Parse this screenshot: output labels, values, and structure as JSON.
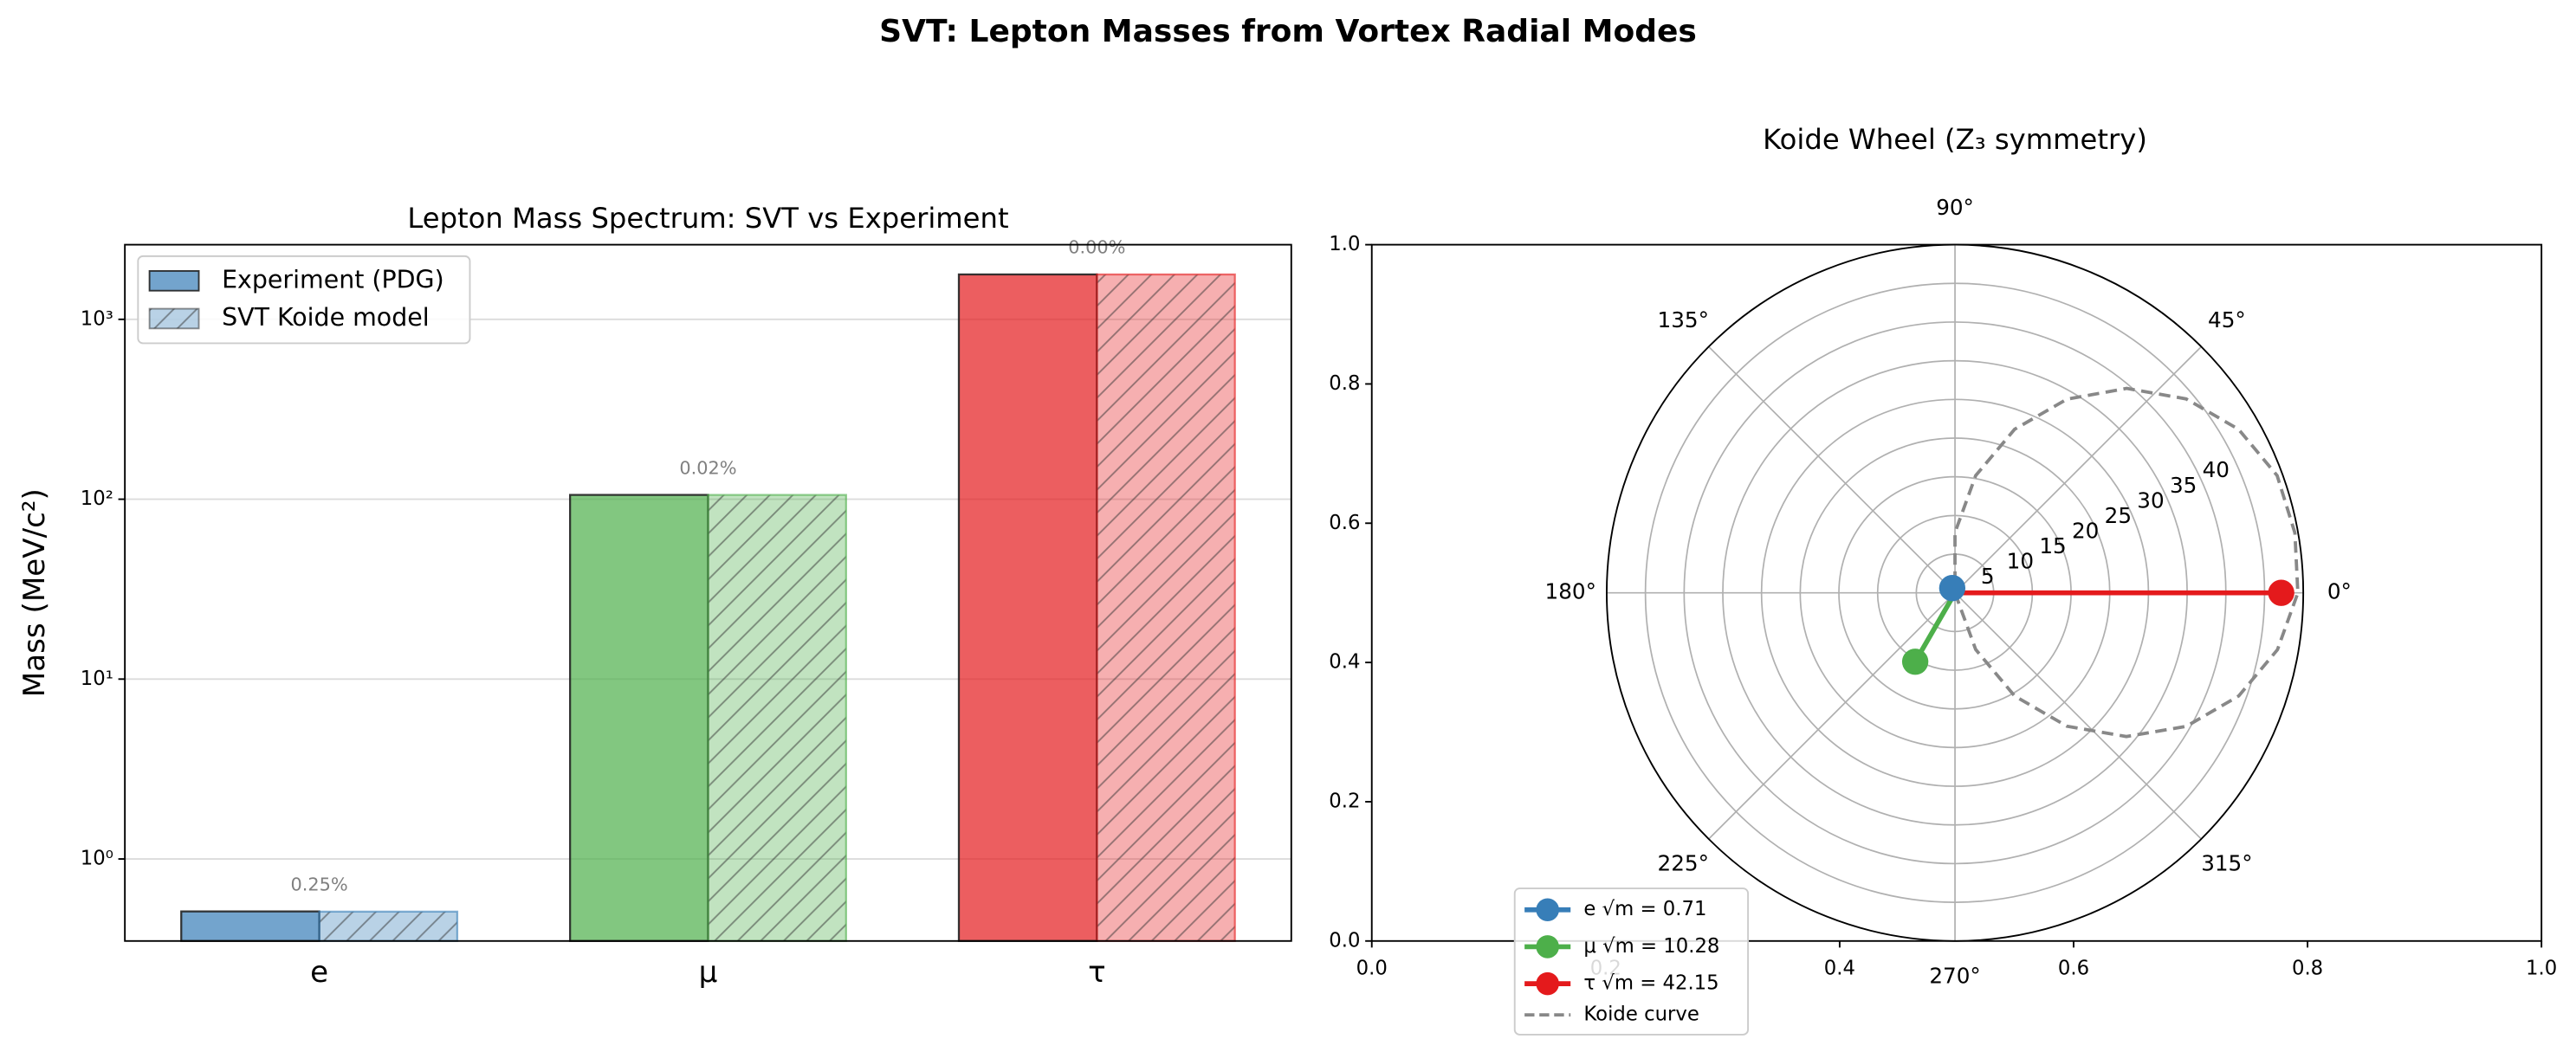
{
  "title": "SVT: Lepton Masses from Vortex Radial Modes",
  "chart_data": [
    {
      "type": "bar",
      "title": "Lepton Mass Spectrum: SVT vs Experiment",
      "ylabel": "Mass  (MeV/c²)",
      "categories": [
        "e",
        "μ",
        "τ"
      ],
      "colors": [
        "#377eb8",
        "#4daf4a",
        "#e41a1c"
      ],
      "series": [
        {
          "name": "Experiment (PDG)",
          "values": [
            0.511,
            105.66,
            1776.86
          ],
          "alpha": 0.7,
          "hatch": false
        },
        {
          "name": "SVT Koide model",
          "values": [
            0.5097,
            105.64,
            1776.9
          ],
          "alpha": 0.35,
          "hatch": true
        }
      ],
      "annotations": [
        "0.25%",
        "0.02%",
        "0.00%"
      ],
      "log_scale": true,
      "ylim": [
        0.35,
        2600
      ],
      "yticks": [
        {
          "value": 1,
          "label": "10⁰"
        },
        {
          "value": 10,
          "label": "10¹"
        },
        {
          "value": 100,
          "label": "10²"
        },
        {
          "value": 1000,
          "label": "10³"
        }
      ],
      "grid": true,
      "legend": "upper left"
    },
    {
      "type": "polar",
      "title": "Koide Wheel  (Z₃ symmetry)",
      "xlim": [
        0,
        1
      ],
      "xticks": [
        {
          "value": 0,
          "label": "0.0"
        },
        {
          "value": 0.2,
          "label": "0.2"
        },
        {
          "value": 0.4,
          "label": "0.4"
        },
        {
          "value": 0.6,
          "label": "0.6"
        },
        {
          "value": 0.8,
          "label": "0.8"
        },
        {
          "value": 1,
          "label": "1.0"
        }
      ],
      "ylim": [
        0,
        1
      ],
      "yticks": [
        {
          "value": 0,
          "label": "0.0"
        },
        {
          "value": 0.2,
          "label": "0.2"
        },
        {
          "value": 0.4,
          "label": "0.4"
        },
        {
          "value": 0.6,
          "label": "0.6"
        },
        {
          "value": 0.8,
          "label": "0.8"
        },
        {
          "value": 1,
          "label": "1.0"
        }
      ],
      "rlim": [
        0,
        45
      ],
      "rticks": [
        5,
        10,
        15,
        20,
        25,
        30,
        35,
        40
      ],
      "thetaticks": [
        {
          "value": 0,
          "label": "0°"
        },
        {
          "value": 45,
          "label": "45°"
        },
        {
          "value": 90,
          "label": "90°"
        },
        {
          "value": 135,
          "label": "135°"
        },
        {
          "value": 180,
          "label": "180°"
        },
        {
          "value": 225,
          "label": "225°"
        },
        {
          "value": 270,
          "label": "270°"
        },
        {
          "value": 315,
          "label": "315°"
        }
      ],
      "series": [
        {
          "name": "e  √m = 0.71",
          "color": "#377eb8",
          "r": 0.71,
          "theta": 120
        },
        {
          "name": "μ  √m = 10.28",
          "color": "#4daf4a",
          "r": 10.28,
          "theta": 240
        },
        {
          "name": "τ  √m = 42.15",
          "color": "#e41a1c",
          "r": 42.15,
          "theta": 0
        }
      ],
      "curve": {
        "name": "Koide curve",
        "color": "#888888",
        "theta": [
          -80,
          -70,
          -60,
          -50,
          -40,
          -30,
          -20,
          -10,
          0,
          10,
          20,
          30,
          40,
          50,
          60,
          70,
          80,
          90,
          100
        ],
        "r": [
          0,
          7.8,
          15.4,
          22.5,
          28.9,
          34.5,
          39.0,
          42.3,
          44.3,
          44.6,
          44.3,
          42.3,
          39.0,
          34.5,
          28.9,
          22.5,
          15.4,
          7.8,
          0
        ]
      },
      "grid": true,
      "legend": "lower left"
    }
  ]
}
